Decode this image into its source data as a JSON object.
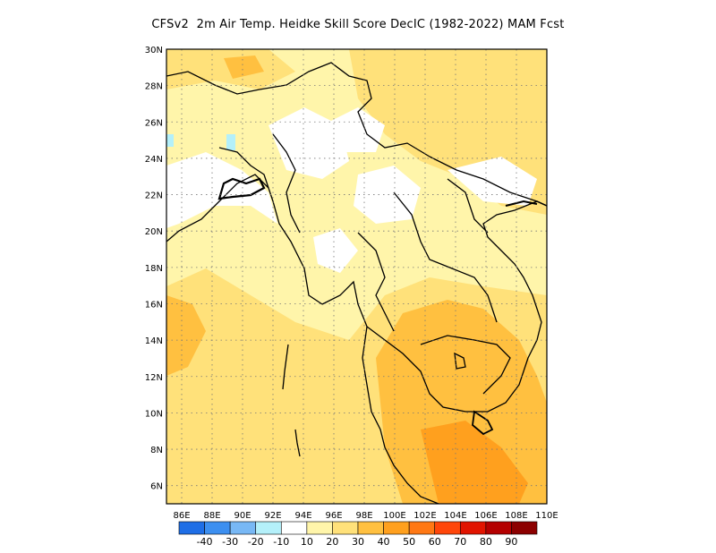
{
  "title": "CFSv2  2m Air Temp. Heidke Skill Score DecIC (1982-2022) MAM Fcst",
  "map": {
    "lon_range": [
      85,
      110
    ],
    "lat_range": [
      5,
      30
    ],
    "lon_ticks": [
      "86E",
      "88E",
      "90E",
      "92E",
      "94E",
      "96E",
      "98E",
      "100E",
      "102E",
      "104E",
      "106E",
      "108E",
      "110E"
    ],
    "lat_ticks": [
      "6N",
      "8N",
      "10N",
      "12N",
      "14N",
      "16N",
      "18N",
      "20N",
      "22N",
      "24N",
      "26N",
      "28N",
      "30N"
    ],
    "grid": "dotted"
  },
  "colorbar": {
    "labels": [
      "-40",
      "-30",
      "-20",
      "-10",
      "10",
      "20",
      "30",
      "40",
      "50",
      "60",
      "70",
      "80",
      "90"
    ],
    "colors": [
      "#1e6ee6",
      "#3c8ff0",
      "#78b8f5",
      "#b4f0fa",
      "#ffffff",
      "#fff5aa",
      "#ffe17a",
      "#ffc040",
      "#ffa01e",
      "#ff7814",
      "#ff460a",
      "#e11400",
      "#b40000",
      "#8c0000"
    ]
  }
}
